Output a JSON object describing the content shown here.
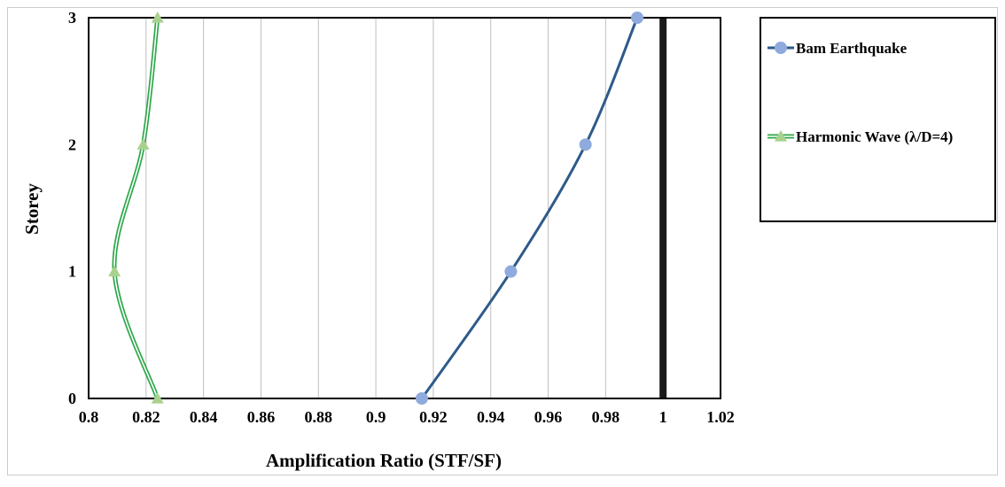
{
  "chart_data": {
    "type": "line",
    "xlabel": "Amplification Ratio (STF/SF)",
    "ylabel": "Storey",
    "xlim": [
      0.8,
      1.02
    ],
    "ylim": [
      0,
      3
    ],
    "x_ticks": [
      "0.8",
      "0.82",
      "0.84",
      "0.86",
      "0.88",
      "0.9",
      "0.92",
      "0.94",
      "0.96",
      "0.98",
      "1",
      "1.02"
    ],
    "y_ticks": [
      "0",
      "1",
      "2",
      "3"
    ],
    "grid": "vertical",
    "legend_position": "right",
    "series": [
      {
        "name": "Bam Earthquake",
        "color": "#2e5a8a",
        "marker": "circle",
        "marker_color": "#8faadc",
        "points": [
          {
            "x": 0.916,
            "y": 0
          },
          {
            "x": 0.947,
            "y": 1
          },
          {
            "x": 0.973,
            "y": 2
          },
          {
            "x": 0.991,
            "y": 3
          }
        ]
      },
      {
        "name": "Harmonic Wave (λ/D=4)",
        "color": "#2ea84a",
        "marker": "triangle",
        "marker_color": "#a9d18e",
        "points": [
          {
            "x": 0.824,
            "y": 0
          },
          {
            "x": 0.809,
            "y": 1
          },
          {
            "x": 0.819,
            "y": 2
          },
          {
            "x": 0.824,
            "y": 3
          }
        ]
      }
    ],
    "reference_line": {
      "x": 1.0,
      "color": "#1a1a1a"
    }
  }
}
